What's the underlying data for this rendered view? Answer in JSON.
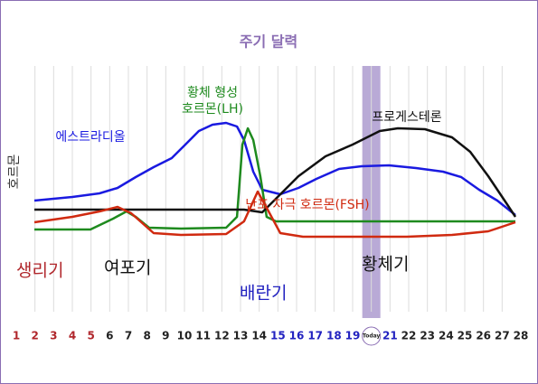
{
  "chart_data": {
    "type": "line",
    "title": "주기 달력",
    "ylabel": "호르몬",
    "xlim": [
      1,
      28
    ],
    "ylim": [
      0,
      100
    ],
    "xticks": [
      1,
      2,
      3,
      4,
      5,
      6,
      7,
      8,
      9,
      10,
      11,
      12,
      13,
      14,
      15,
      16,
      17,
      18,
      19,
      {
        "value": 20,
        "label": "Today"
      },
      21,
      22,
      23,
      24,
      25,
      26,
      27,
      28
    ],
    "xtick_colors": [
      "#b0262b",
      "#b0262b",
      "#b0262b",
      "#b0262b",
      "#b0262b",
      "#222",
      "#222",
      "#222",
      "#222",
      "#222",
      "#222",
      "#222",
      "#222",
      "#222",
      "#2222c0",
      "#2222c0",
      "#2222c0",
      "#2222c0",
      "#2222c0",
      "#222",
      "#2222c0",
      "#222",
      "#222",
      "#222",
      "#222",
      "#222",
      "#222",
      "#222"
    ],
    "highlight_x": 20,
    "grid": true,
    "series": [
      {
        "name": "에스트라디올",
        "color": "#1a1ae0",
        "x": [
          1.97,
          4.0,
          5.45,
          6.42,
          7.39,
          8.35,
          9.32,
          10.05,
          10.77,
          11.5,
          12.23,
          12.81,
          13.19,
          13.68,
          14.16,
          15.13,
          16.1,
          17.06,
          18.27,
          19.48,
          20.94,
          22.39,
          23.84,
          24.81,
          25.77,
          26.74,
          27.71
        ],
        "values": [
          39,
          41,
          43,
          46,
          52,
          57.5,
          62.5,
          70,
          77.5,
          81,
          82,
          80,
          72.5,
          55,
          45,
          42.5,
          46,
          51,
          56.5,
          58,
          58.5,
          57,
          55,
          52,
          45,
          39,
          31
        ]
      },
      {
        "name": [
          "황체 형성",
          "호르몬(LH)"
        ],
        "color": "#1e8a1e",
        "x": [
          1.97,
          4.97,
          6.18,
          6.9,
          7.39,
          8.11,
          9.81,
          12.23,
          12.81,
          13.1,
          13.39,
          13.68,
          14.06,
          14.4,
          14.89,
          19.48,
          27.71
        ],
        "values": [
          23,
          23,
          29,
          33,
          30,
          24,
          23.5,
          24,
          30,
          70,
          79,
          72.5,
          52.5,
          30,
          27.5,
          27.5,
          27.5
        ]
      },
      {
        "name": "프로게스테론",
        "color": "#111",
        "x": [
          1.97,
          13.19,
          14.16,
          14.89,
          16.1,
          17.55,
          19.0,
          20.45,
          21.42,
          22.87,
          24.32,
          25.29,
          26.26,
          27.23,
          27.71
        ],
        "values": [
          34,
          34,
          32.5,
          40,
          52.5,
          63.5,
          70,
          77.5,
          79,
          78.5,
          74,
          66,
          52.5,
          37.5,
          30
        ]
      },
      {
        "name": "난포 자극 호르몬(FSH)",
        "color": "#d02a10",
        "x": [
          1.97,
          4.0,
          5.45,
          6.42,
          7.15,
          8.35,
          9.81,
          12.23,
          13.19,
          13.92,
          14.4,
          15.13,
          16.34,
          21.9,
          24.32,
          26.26,
          27.71
        ],
        "values": [
          27,
          30,
          33,
          35.5,
          32,
          21,
          20,
          20.5,
          27.5,
          44,
          35,
          21,
          19,
          19,
          20,
          22,
          27
        ]
      }
    ],
    "annotations": [
      "생리기",
      "여포기",
      "배란기",
      "황체기"
    ]
  }
}
